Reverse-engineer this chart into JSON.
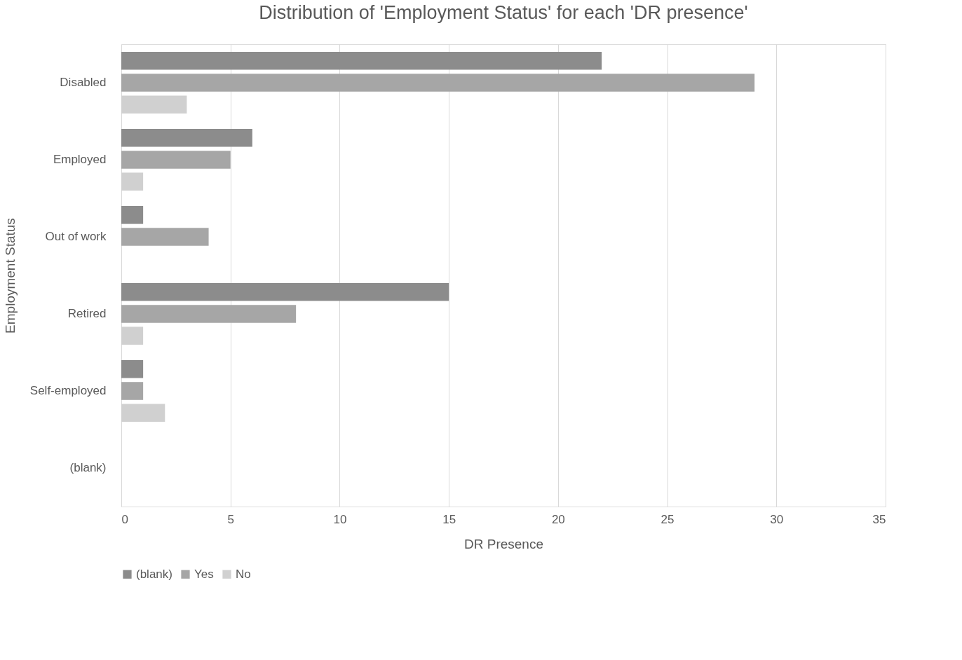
{
  "chart_data": {
    "type": "bar",
    "orientation": "horizontal",
    "title": "Distribution of 'Employment Status' for each 'DR presence'",
    "xlabel": "DR Presence",
    "ylabel": "Employment Status",
    "categories": [
      "Disabled",
      "Employed",
      "Out of work",
      "Retired",
      "Self-employed",
      "(blank)"
    ],
    "series": [
      {
        "name": "(blank)",
        "color": "#8c8c8c",
        "values": [
          22,
          6,
          1,
          15,
          1,
          null
        ]
      },
      {
        "name": "Yes",
        "color": "#a6a6a6",
        "values": [
          29,
          5,
          4,
          8,
          1,
          null
        ]
      },
      {
        "name": "No",
        "color": "#d0d0d0",
        "values": [
          3,
          1,
          null,
          1,
          2,
          null
        ]
      }
    ],
    "xlim": [
      0,
      35
    ],
    "xticks": [
      0,
      5,
      10,
      15,
      20,
      25,
      30,
      35
    ],
    "grid": "x",
    "legend": "bottom"
  }
}
